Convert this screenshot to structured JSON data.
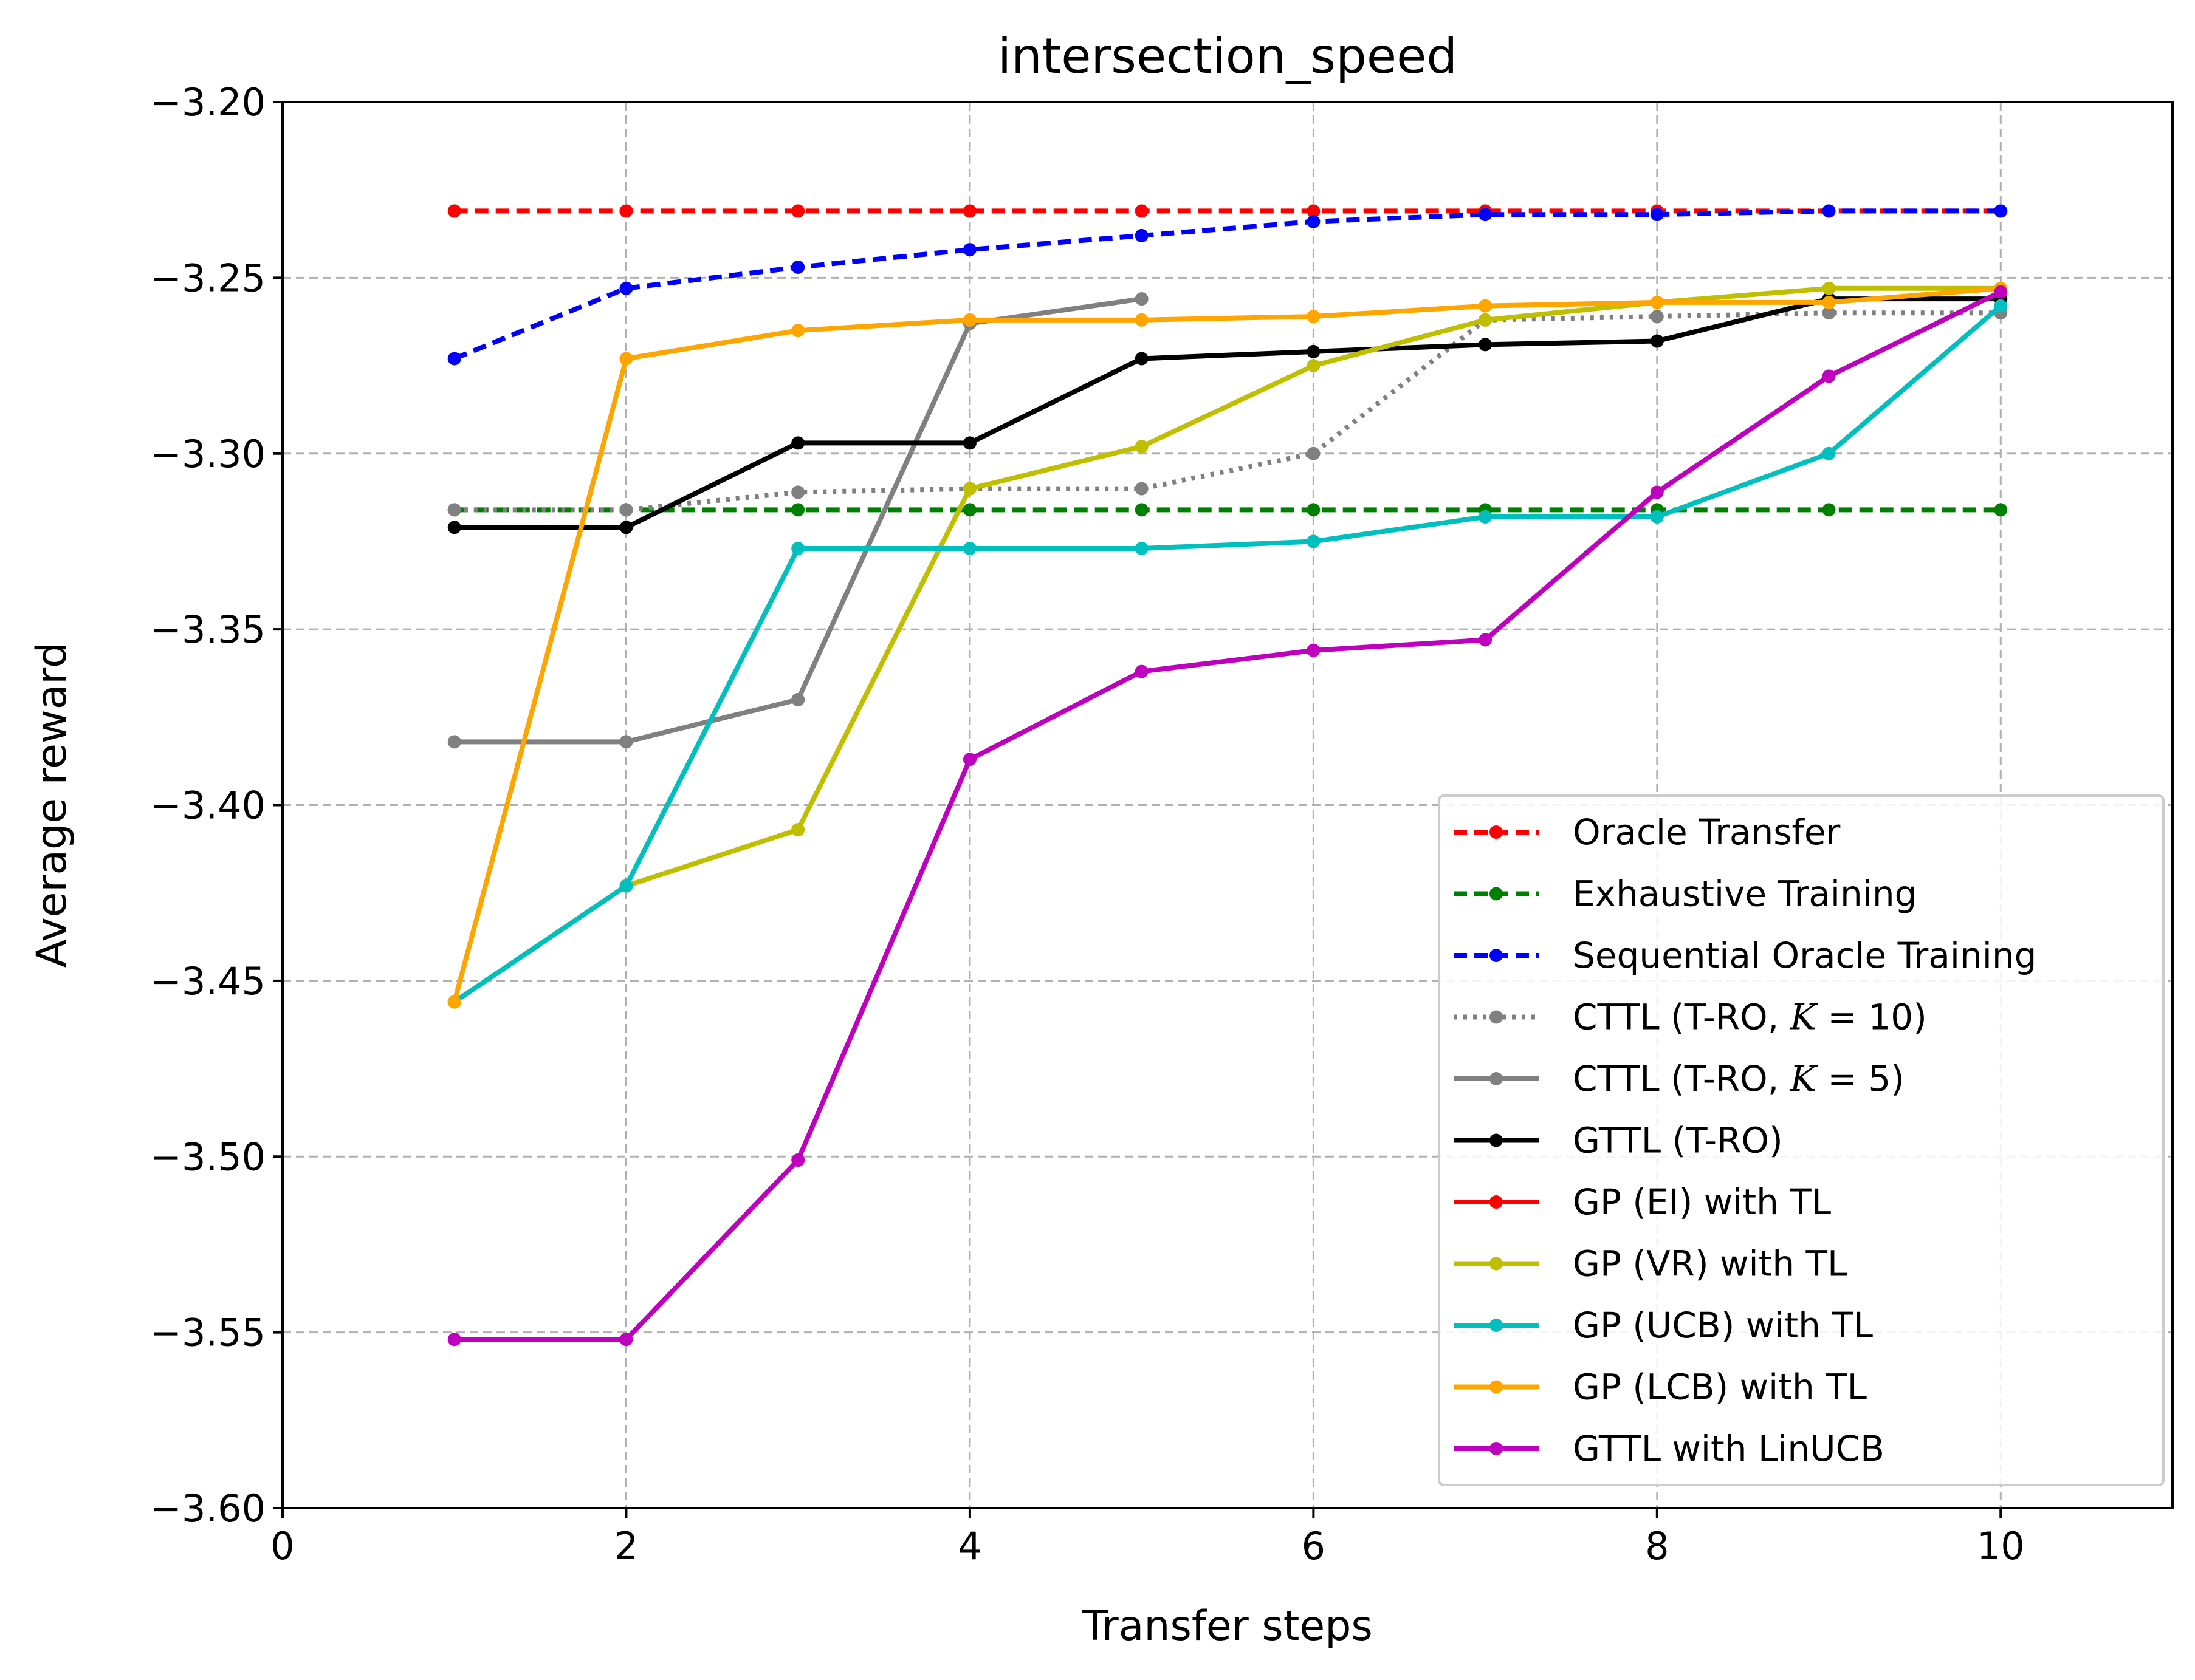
{
  "chart_data": {
    "type": "line",
    "title": "intersection_speed",
    "xlabel": "Transfer steps",
    "ylabel": "Average reward",
    "xlim": [
      0,
      11
    ],
    "ylim": [
      -3.6,
      -3.2
    ],
    "xticks": [
      0,
      2,
      4,
      6,
      8,
      10
    ],
    "xtick_labels": [
      "0",
      "2",
      "4",
      "6",
      "8",
      "10"
    ],
    "yticks": [
      -3.2,
      -3.25,
      -3.3,
      -3.35,
      -3.4,
      -3.45,
      -3.5,
      -3.55,
      -3.6
    ],
    "ytick_labels": [
      "−3.20",
      "−3.25",
      "−3.30",
      "−3.35",
      "−3.40",
      "−3.45",
      "−3.50",
      "−3.55",
      "−3.60"
    ],
    "grid": true,
    "legend_position": "lower-right",
    "series": [
      {
        "name": "Oracle Transfer",
        "color": "#ff0000",
        "style": "dashed",
        "x": [
          1,
          2,
          3,
          4,
          5,
          6,
          7,
          8,
          9,
          10
        ],
        "values": [
          -3.231,
          -3.231,
          -3.231,
          -3.231,
          -3.231,
          -3.231,
          -3.231,
          -3.231,
          -3.231,
          -3.231
        ]
      },
      {
        "name": "Exhaustive Training",
        "color": "#008000",
        "style": "dashed",
        "x": [
          1,
          2,
          3,
          4,
          5,
          6,
          7,
          8,
          9,
          10
        ],
        "values": [
          -3.316,
          -3.316,
          -3.316,
          -3.316,
          -3.316,
          -3.316,
          -3.316,
          -3.316,
          -3.316,
          -3.316
        ]
      },
      {
        "name": "Sequential Oracle Training",
        "color": "#0000ff",
        "style": "dashed",
        "x": [
          1,
          2,
          3,
          4,
          5,
          6,
          7,
          8,
          9,
          10
        ],
        "values": [
          -3.273,
          -3.253,
          -3.247,
          -3.242,
          -3.238,
          -3.234,
          -3.232,
          -3.232,
          -3.231,
          -3.231
        ]
      },
      {
        "name": "CTTL (T-RO, K = 10)",
        "name_parts": {
          "pre": "CTTL (T-RO, ",
          "var": "K",
          "post": " = 10)"
        },
        "color": "#808080",
        "style": "dotted",
        "x": [
          1,
          2,
          3,
          4,
          5,
          6,
          7,
          8,
          9,
          10
        ],
        "values": [
          -3.316,
          -3.316,
          -3.311,
          -3.31,
          -3.31,
          -3.3,
          -3.262,
          -3.261,
          -3.26,
          -3.26
        ]
      },
      {
        "name": "CTTL (T-RO, K = 5)",
        "name_parts": {
          "pre": "CTTL (T-RO, ",
          "var": "K",
          "post": " = 5)"
        },
        "color": "#808080",
        "style": "solid",
        "x": [
          1,
          2,
          3,
          4,
          5
        ],
        "values": [
          -3.382,
          -3.382,
          -3.37,
          -3.263,
          -3.256
        ]
      },
      {
        "name": "GTTL (T-RO)",
        "color": "#000000",
        "style": "solid",
        "x": [
          1,
          2,
          3,
          4,
          5,
          6,
          7,
          8,
          9,
          10
        ],
        "values": [
          -3.321,
          -3.321,
          -3.297,
          -3.297,
          -3.273,
          -3.271,
          -3.269,
          -3.268,
          -3.256,
          -3.256
        ]
      },
      {
        "name": "GP (EI) with TL",
        "color": "#ff0000",
        "style": "solid",
        "x": [],
        "values": []
      },
      {
        "name": "GP (VR) with TL",
        "color": "#bfbf00",
        "style": "solid",
        "x": [
          1,
          2,
          3,
          4,
          5,
          6,
          7,
          8,
          9,
          10
        ],
        "values": [
          -3.456,
          -3.423,
          -3.407,
          -3.31,
          -3.298,
          -3.275,
          -3.262,
          -3.257,
          -3.253,
          -3.253
        ]
      },
      {
        "name": "GP (UCB) with TL",
        "color": "#00bfbf",
        "style": "solid",
        "x": [
          1,
          2,
          3,
          4,
          5,
          6,
          7,
          8,
          9,
          10
        ],
        "values": [
          -3.456,
          -3.423,
          -3.327,
          -3.327,
          -3.327,
          -3.325,
          -3.318,
          -3.318,
          -3.3,
          -3.258
        ]
      },
      {
        "name": "GP (LCB) with TL",
        "color": "#ffa500",
        "style": "solid",
        "x": [
          1,
          2,
          3,
          4,
          5,
          6,
          7,
          8,
          9,
          10
        ],
        "values": [
          -3.456,
          -3.273,
          -3.265,
          -3.262,
          -3.262,
          -3.261,
          -3.258,
          -3.257,
          -3.257,
          -3.253
        ]
      },
      {
        "name": "GTTL with LinUCB",
        "color": "#bf00bf",
        "style": "solid",
        "x": [
          1,
          2,
          3,
          4,
          5,
          6,
          7,
          8,
          9,
          10
        ],
        "values": [
          -3.552,
          -3.552,
          -3.501,
          -3.387,
          -3.362,
          -3.356,
          -3.353,
          -3.311,
          -3.278,
          -3.254
        ]
      }
    ]
  }
}
